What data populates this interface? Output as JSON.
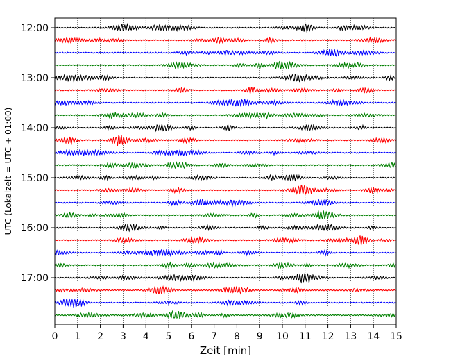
{
  "chart_data": {
    "type": "line",
    "title": "",
    "xlabel": "Zeit  [min]",
    "ylabel": "UTC (Lokalzeit = UTC + 01:00)",
    "xlim": [
      0,
      15
    ],
    "x_ticks": [
      "0",
      "1",
      "2",
      "3",
      "4",
      "5",
      "6",
      "7",
      "8",
      "9",
      "10",
      "11",
      "12",
      "13",
      "14",
      "15"
    ],
    "y_tick_labels": [
      "12:00",
      "13:00",
      "14:00",
      "15:00",
      "16:00",
      "17:00"
    ],
    "trace_start": "12:00",
    "trace_interval_minutes": 15,
    "trace_count": 24,
    "trace_colors": [
      "#000000",
      "#ff0000",
      "#0000ff",
      "#008000"
    ],
    "vertical_grid": true,
    "grid_style": "dotted"
  }
}
